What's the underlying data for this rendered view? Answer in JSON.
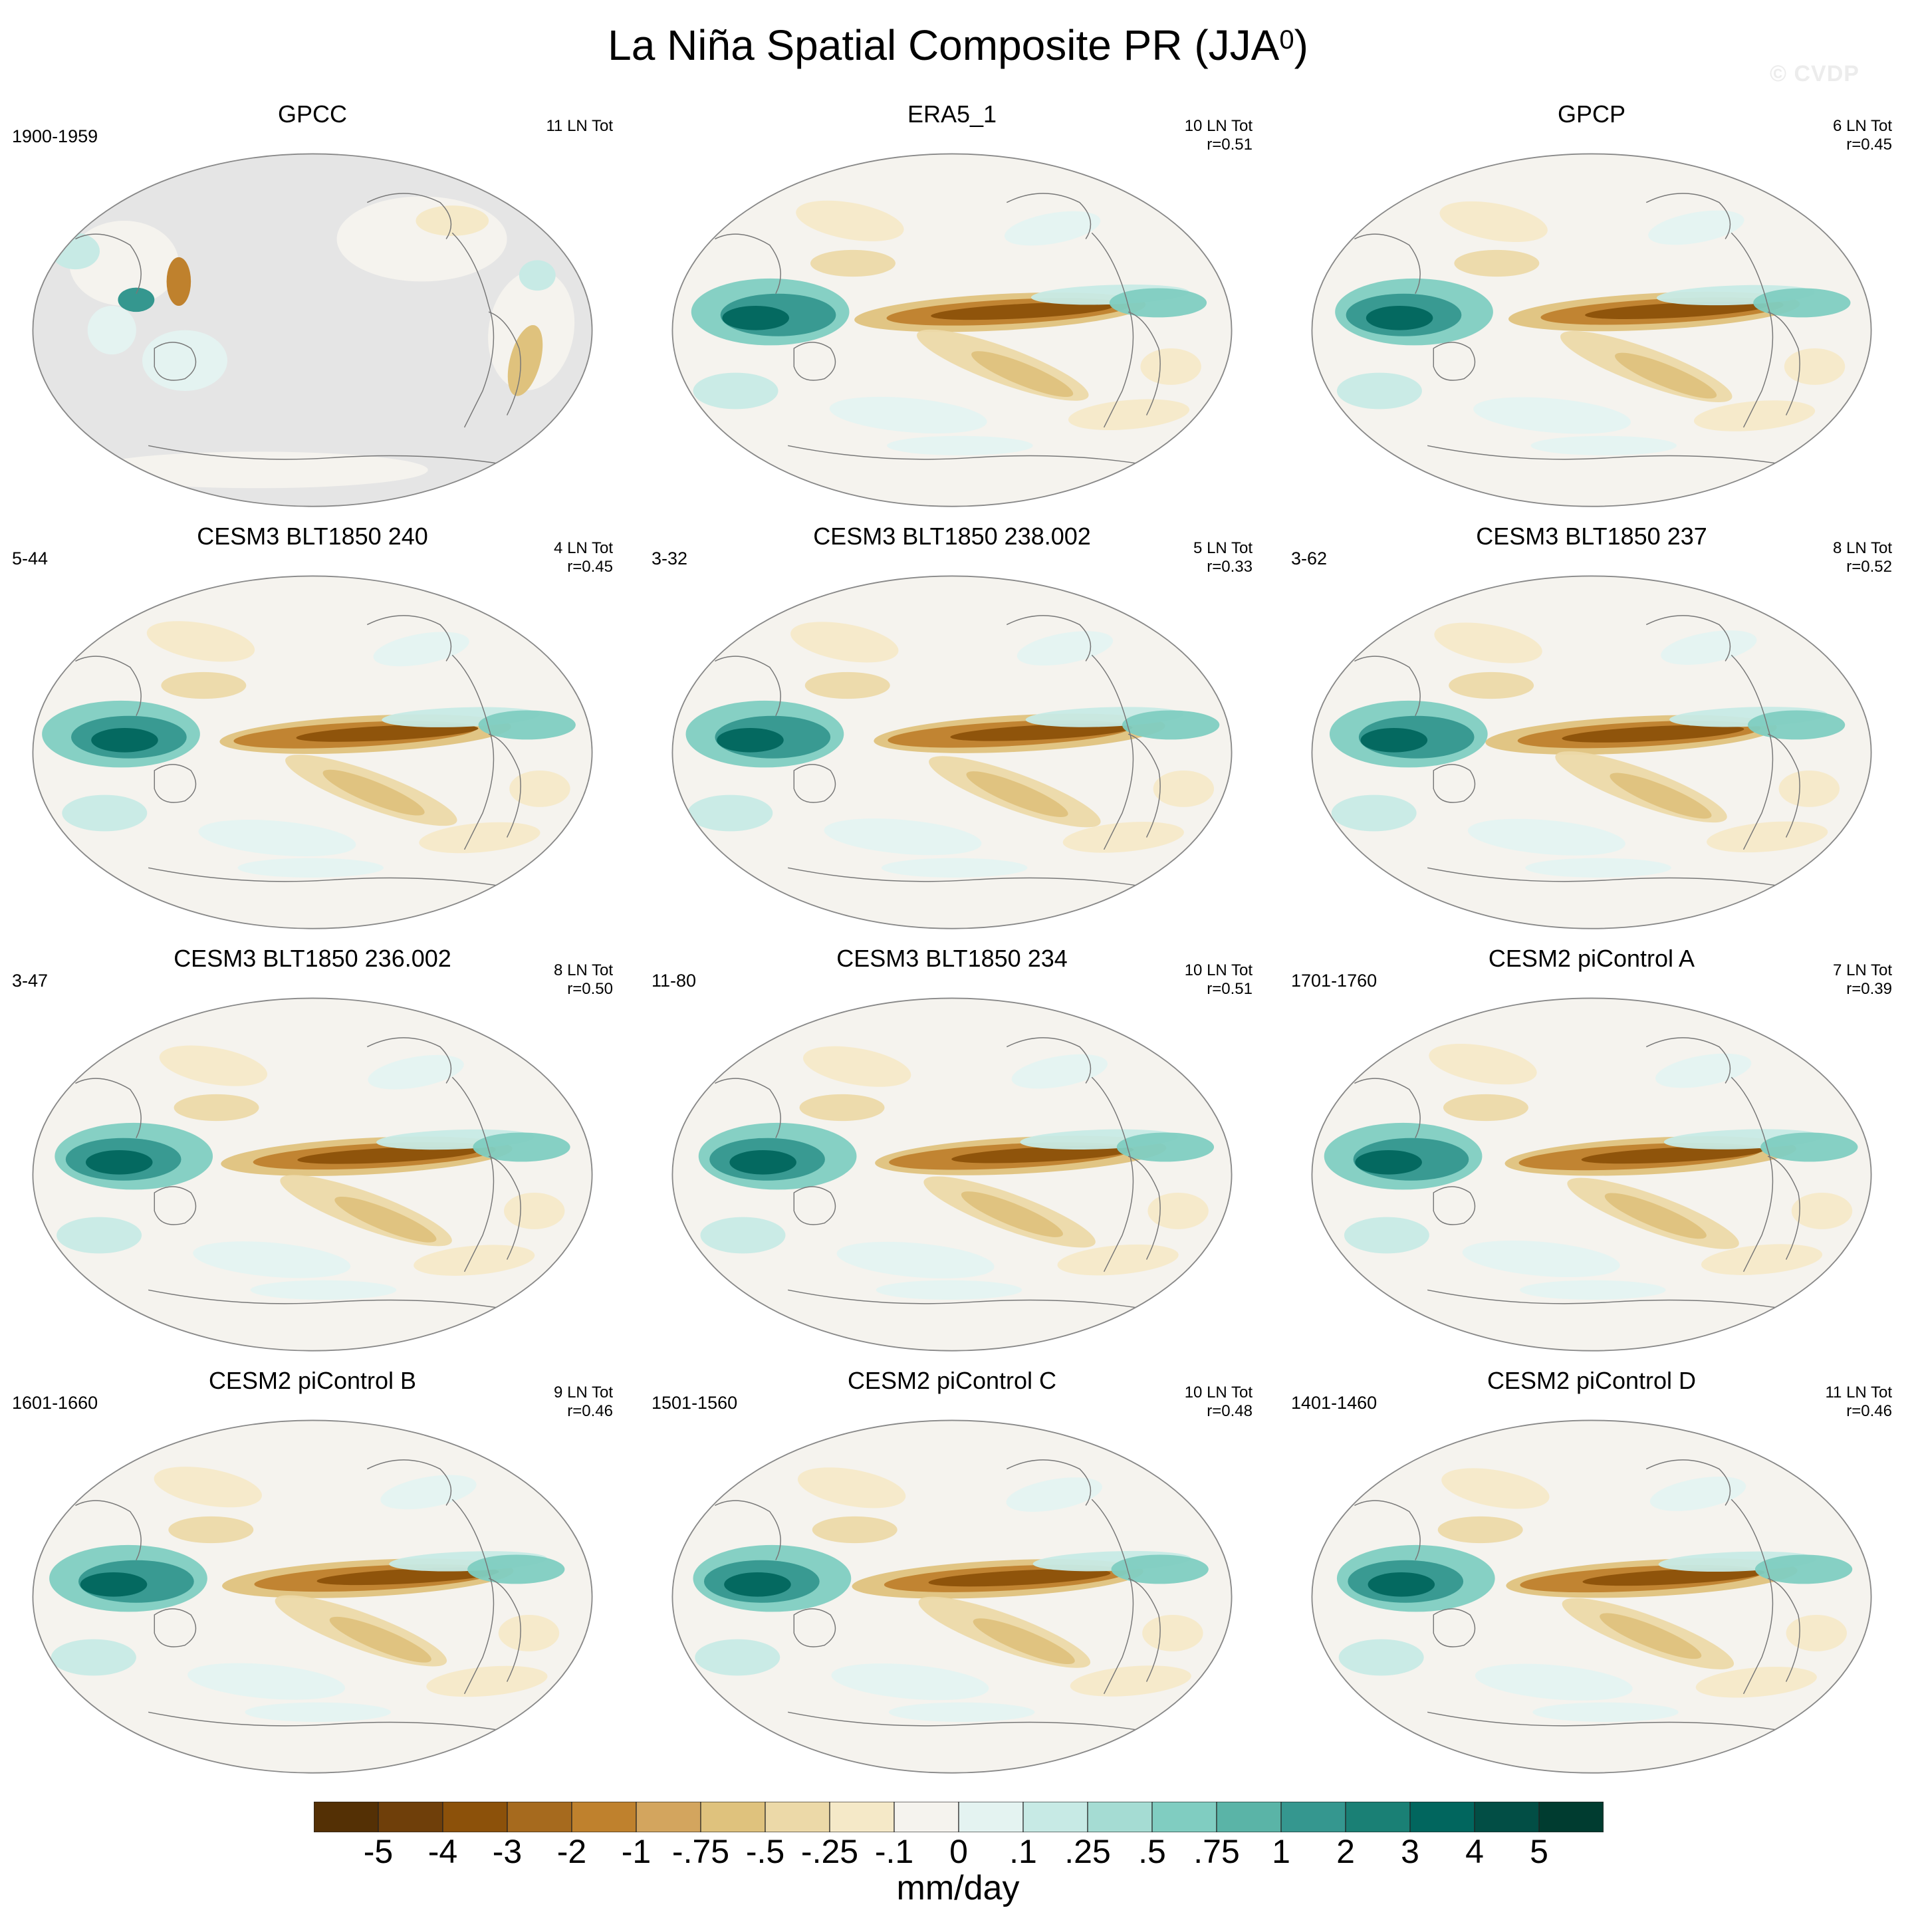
{
  "title": {
    "main": "La Niña Spatial Composite PR (JJA",
    "superscript": "0",
    "close": ")"
  },
  "watermark": "© CVDP",
  "panels": [
    {
      "title": "GPCC",
      "left": "1900-1959",
      "right1": "11 LN Tot",
      "right2": "",
      "style": "gpcc"
    },
    {
      "title": "ERA5_1",
      "left": "",
      "right1": "10 LN Tot",
      "right2": "r=0.51",
      "style": "model"
    },
    {
      "title": "GPCP",
      "left": "",
      "right1": "6 LN Tot",
      "right2": "r=0.45",
      "style": "model"
    },
    {
      "title": "CESM3 BLT1850 240",
      "left": "5-44",
      "right1": "4 LN Tot",
      "right2": "r=0.45",
      "style": "model"
    },
    {
      "title": "CESM3 BLT1850 238.002",
      "left": "3-32",
      "right1": "5 LN Tot",
      "right2": "r=0.33",
      "style": "model"
    },
    {
      "title": "CESM3 BLT1850 237",
      "left": "3-62",
      "right1": "8 LN Tot",
      "right2": "r=0.52",
      "style": "model"
    },
    {
      "title": "CESM3 BLT1850 236.002",
      "left": "3-47",
      "right1": "8 LN Tot",
      "right2": "r=0.50",
      "style": "model"
    },
    {
      "title": "CESM3 BLT1850 234",
      "left": "11-80",
      "right1": "10 LN Tot",
      "right2": "r=0.51",
      "style": "model"
    },
    {
      "title": "CESM2 piControl A",
      "left": "1701-1760",
      "right1": "7 LN Tot",
      "right2": "r=0.39",
      "style": "model"
    },
    {
      "title": "CESM2 piControl B",
      "left": "1601-1660",
      "right1": "9 LN Tot",
      "right2": "r=0.46",
      "style": "model"
    },
    {
      "title": "CESM2 piControl C",
      "left": "1501-1560",
      "right1": "10 LN Tot",
      "right2": "r=0.48",
      "style": "model"
    },
    {
      "title": "CESM2 piControl D",
      "left": "1401-1460",
      "right1": "11 LN Tot",
      "right2": "r=0.46",
      "style": "model"
    }
  ],
  "colorbar": {
    "units": "mm/day",
    "labels": [
      "-5",
      "-4",
      "-3",
      "-2",
      "-1",
      "-.75",
      "-.5",
      "-.25",
      "-.1",
      "0",
      ".1",
      ".25",
      ".5",
      ".75",
      "1",
      "2",
      "3",
      "4",
      "5"
    ],
    "colors": [
      "#543005",
      "#6f3f0a",
      "#8c510a",
      "#a66a1e",
      "#bf812d",
      "#d3a55e",
      "#dfc27d",
      "#ecd9a8",
      "#f5e9c8",
      "#f5f3ee",
      "#e4f3f1",
      "#c7eae5",
      "#a5dcd3",
      "#80cdc1",
      "#5ab4a7",
      "#35978f",
      "#1a8075",
      "#01665e",
      "#024e45",
      "#003c30"
    ]
  },
  "map_colors": {
    "ocean_gray": "#e5e5e5",
    "coast": "#777777"
  }
}
